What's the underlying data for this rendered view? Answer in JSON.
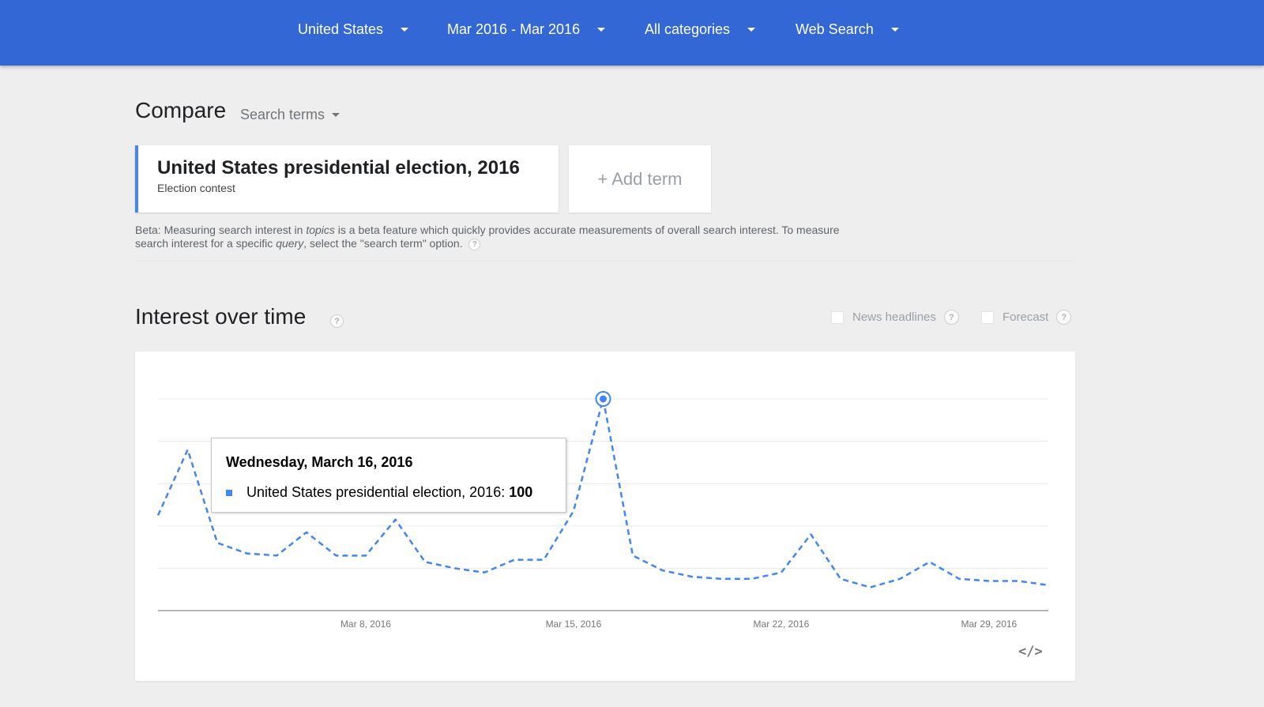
{
  "header": {
    "filters": [
      {
        "label": "United States",
        "name": "filter-region"
      },
      {
        "label": "Mar 2016 - Mar 2016",
        "name": "filter-time-range"
      },
      {
        "label": "All categories",
        "name": "filter-category"
      },
      {
        "label": "Web Search",
        "name": "filter-search-type"
      }
    ]
  },
  "compare": {
    "title": "Compare",
    "search_terms_label": "Search terms",
    "term": {
      "name": "United States presidential election, 2016",
      "type": "Election contest"
    },
    "add_term_label": "+ Add term",
    "beta_note": {
      "p1": "Beta: Measuring search interest in ",
      "em1": "topics",
      "p2": " is a beta feature which quickly provides accurate measurements of overall search interest. To measure search interest for a specific ",
      "em2": "query",
      "p3": ", select the \"search term\" option."
    }
  },
  "interest": {
    "title": "Interest over time",
    "news_headlines_label": "News headlines",
    "forecast_label": "Forecast",
    "embed_label": "</>",
    "help_glyph": "?"
  },
  "colors": {
    "series": "#4285f4",
    "header": "#3367d6"
  },
  "chart_data": {
    "type": "line",
    "x": [
      "2016-03-01",
      "2016-03-02",
      "2016-03-03",
      "2016-03-04",
      "2016-03-05",
      "2016-03-06",
      "2016-03-07",
      "2016-03-08",
      "2016-03-09",
      "2016-03-10",
      "2016-03-11",
      "2016-03-12",
      "2016-03-13",
      "2016-03-14",
      "2016-03-15",
      "2016-03-16",
      "2016-03-17",
      "2016-03-18",
      "2016-03-19",
      "2016-03-20",
      "2016-03-21",
      "2016-03-22",
      "2016-03-23",
      "2016-03-24",
      "2016-03-25",
      "2016-03-26",
      "2016-03-27",
      "2016-03-28",
      "2016-03-29",
      "2016-03-30",
      "2016-03-31"
    ],
    "series": [
      {
        "name": "United States presidential election, 2016",
        "values": [
          45,
          76,
          32,
          27,
          26,
          37,
          26,
          26,
          43,
          23,
          20,
          18,
          24,
          24,
          47,
          100,
          26,
          19,
          16,
          15,
          15,
          18,
          36,
          15,
          11,
          15,
          23,
          15,
          14,
          14,
          12
        ]
      }
    ],
    "x_tick_labels": [
      "Mar 8, 2016",
      "Mar 15, 2016",
      "Mar 22, 2016",
      "Mar 29, 2016"
    ],
    "ylim": [
      0,
      100
    ],
    "grid": true,
    "line_style": "dashed",
    "highlight": {
      "date": "Wednesday, March 16, 2016",
      "series": "United States presidential election, 2016",
      "value": "100"
    }
  }
}
